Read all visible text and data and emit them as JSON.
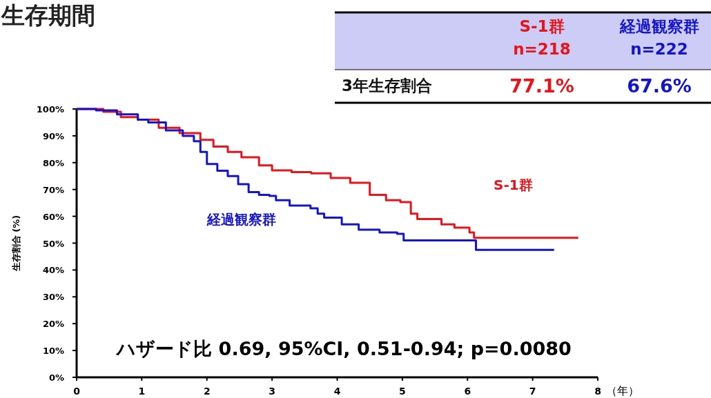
{
  "chart_data": [
    {
      "type": "step",
      "title": "生存期間",
      "ylabel": "生存割合 (%)",
      "xlabel": "（年）",
      "annotations": [
        {
          "text": "ハザード比 0.69, 95%CI, 0.51-0.94; p=0.0080"
        }
      ],
      "series": [
        {
          "name": "S-1群",
          "color": "#e8141b",
          "x": [
            0,
            0.41,
            0.68,
            0.94,
            1.26,
            1.58,
            1.9,
            2.1,
            2.32,
            2.53,
            2.8,
            3.0,
            3.3,
            3.6,
            3.9,
            4.2,
            4.5,
            4.75,
            4.97,
            5.13,
            5.23,
            5.6,
            5.8,
            6.03,
            6.1,
            7.7
          ],
          "values": [
            100,
            99,
            97,
            96,
            93,
            91,
            88.5,
            86,
            84,
            82,
            79,
            77.1,
            76.5,
            76,
            74.3,
            72.5,
            68,
            66,
            65.3,
            61,
            59,
            57,
            55.8,
            54,
            52,
            52
          ]
        },
        {
          "name": "経過観察群",
          "color": "#1414c8",
          "x": [
            0,
            0.3,
            0.62,
            0.94,
            1.1,
            1.37,
            1.63,
            1.8,
            1.9,
            2.0,
            2.16,
            2.32,
            2.48,
            2.64,
            2.8,
            2.96,
            3.06,
            3.27,
            3.59,
            3.7,
            3.8,
            4.07,
            4.33,
            4.65,
            4.92,
            5.02,
            6.13,
            7.33
          ],
          "values": [
            100,
            99.5,
            98,
            96,
            95,
            92,
            90,
            88,
            84,
            79.5,
            77,
            75,
            72,
            69,
            68,
            67.6,
            66,
            64,
            63,
            61,
            59.5,
            57,
            55,
            54,
            53.5,
            51,
            47.5,
            47.5
          ]
        }
      ],
      "xlim": [
        0,
        8
      ],
      "xticks": [
        0,
        1,
        2,
        3,
        4,
        5,
        6,
        7,
        8
      ],
      "ylim": [
        0,
        100
      ],
      "yticks": [
        {
          "value": 0,
          "label": "0%"
        },
        {
          "value": 10,
          "label": "10%"
        },
        {
          "value": 20,
          "label": "20%"
        },
        {
          "value": 30,
          "label": "30%"
        },
        {
          "value": 40,
          "label": "40%"
        },
        {
          "value": 50,
          "label": "50%"
        },
        {
          "value": 60,
          "label": "60%"
        },
        {
          "value": 70,
          "label": "70%"
        },
        {
          "value": 80,
          "label": "80%"
        },
        {
          "value": 90,
          "label": "90%"
        },
        {
          "value": 100,
          "label": "100%"
        }
      ],
      "line_style": "solid",
      "grid": false
    },
    {
      "type": "other",
      "categories": [
        "S-1群\nn=218",
        "経過観察群\nn=222"
      ],
      "annotations": [
        "3年生存割合",
        "77.1%",
        "67.6%"
      ]
    }
  ]
}
